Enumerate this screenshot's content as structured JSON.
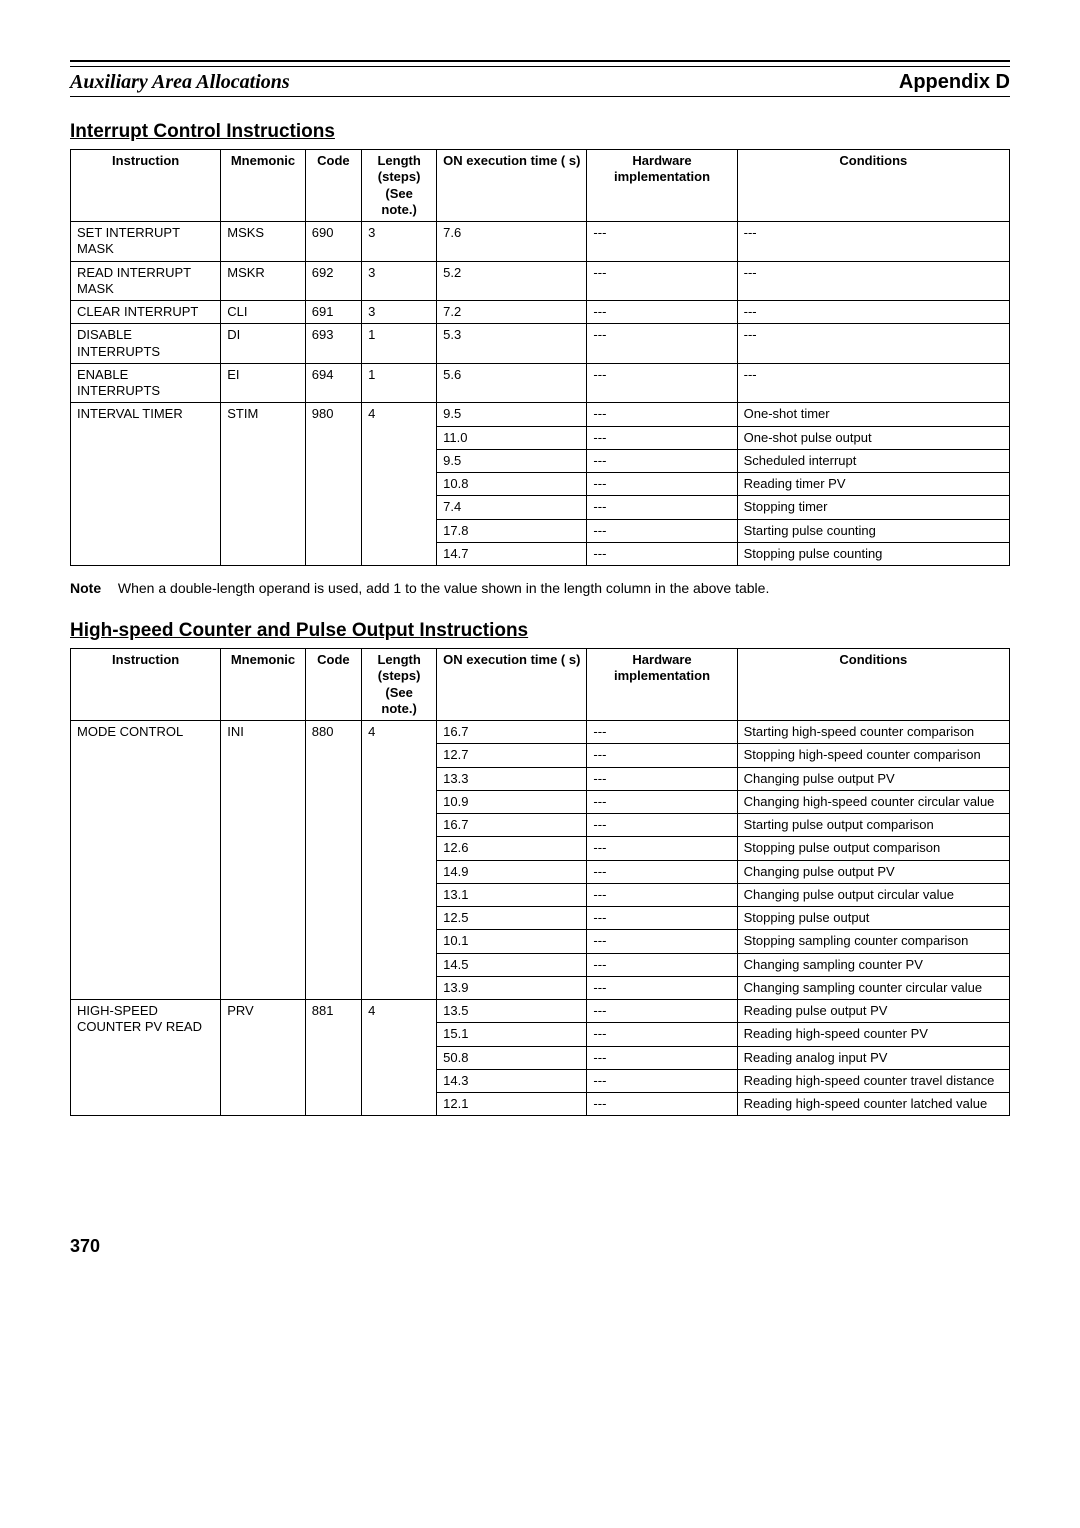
{
  "header": {
    "left": "Auxiliary Area Allocations",
    "right": "Appendix D"
  },
  "section1": {
    "title": "Interrupt Control Instructions",
    "columns": [
      "Instruction",
      "Mnemonic",
      "Code",
      "Length (steps) (See note.)",
      "ON execution time (  s)",
      "Hardware implementation",
      "Conditions"
    ],
    "rows": [
      {
        "instruction": "SET INTERRUPT MASK",
        "mnemonic": "MSKS",
        "code": "690",
        "length": "3",
        "on": "7.6",
        "hw": "---",
        "cond": "---",
        "rowspan": 1
      },
      {
        "instruction": "READ INTERRUPT MASK",
        "mnemonic": "MSKR",
        "code": "692",
        "length": "3",
        "on": "5.2",
        "hw": "---",
        "cond": "---",
        "rowspan": 1
      },
      {
        "instruction": "CLEAR INTERRUPT",
        "mnemonic": "CLI",
        "code": "691",
        "length": "3",
        "on": "7.2",
        "hw": "---",
        "cond": "---",
        "rowspan": 1
      },
      {
        "instruction": "DISABLE INTERRUPTS",
        "mnemonic": "DI",
        "code": "693",
        "length": "1",
        "on": "5.3",
        "hw": "---",
        "cond": "---",
        "rowspan": 1
      },
      {
        "instruction": "ENABLE INTERRUPTS",
        "mnemonic": "EI",
        "code": "694",
        "length": "1",
        "on": "5.6",
        "hw": "---",
        "cond": "---",
        "rowspan": 1
      },
      {
        "instruction": "INTERVAL TIMER",
        "mnemonic": "STIM",
        "code": "980",
        "length": "4",
        "rowspan": 7,
        "sub": [
          {
            "on": "9.5",
            "hw": "---",
            "cond": "One-shot timer"
          },
          {
            "on": "11.0",
            "hw": "---",
            "cond": "One-shot pulse output"
          },
          {
            "on": "9.5",
            "hw": "---",
            "cond": "Scheduled interrupt"
          },
          {
            "on": "10.8",
            "hw": "---",
            "cond": "Reading timer PV"
          },
          {
            "on": "7.4",
            "hw": "---",
            "cond": "Stopping timer"
          },
          {
            "on": "17.8",
            "hw": "---",
            "cond": "Starting pulse counting"
          },
          {
            "on": "14.7",
            "hw": "---",
            "cond": "Stopping pulse counting"
          }
        ]
      }
    ]
  },
  "note": {
    "label": "Note",
    "text": "When a double-length operand is used, add 1 to the value shown in the length column in the above table."
  },
  "section2": {
    "title": "High-speed Counter and Pulse Output Instructions",
    "columns": [
      "Instruction",
      "Mnemonic",
      "Code",
      "Length (steps) (See note.)",
      "ON execution time (  s)",
      "Hardware implementation",
      "Conditions"
    ],
    "rows": [
      {
        "instruction": "MODE CONTROL",
        "mnemonic": "INI",
        "code": "880",
        "length": "4",
        "rowspan": 12,
        "sub": [
          {
            "on": "16.7",
            "hw": "---",
            "cond": "Starting high-speed counter comparison"
          },
          {
            "on": "12.7",
            "hw": "---",
            "cond": "Stopping high-speed counter comparison"
          },
          {
            "on": "13.3",
            "hw": "---",
            "cond": "Changing pulse output PV"
          },
          {
            "on": "10.9",
            "hw": "---",
            "cond": "Changing high-speed counter circular value"
          },
          {
            "on": "16.7",
            "hw": "---",
            "cond": "Starting pulse output comparison"
          },
          {
            "on": "12.6",
            "hw": "---",
            "cond": "Stopping pulse output comparison"
          },
          {
            "on": "14.9",
            "hw": "---",
            "cond": "Changing pulse output PV"
          },
          {
            "on": "13.1",
            "hw": "---",
            "cond": "Changing pulse output circular value"
          },
          {
            "on": "12.5",
            "hw": "---",
            "cond": "Stopping pulse output"
          },
          {
            "on": "10.1",
            "hw": "---",
            "cond": "Stopping sampling counter comparison"
          },
          {
            "on": "14.5",
            "hw": "---",
            "cond": "Changing sampling counter PV"
          },
          {
            "on": "13.9",
            "hw": "---",
            "cond": "Changing sampling counter circular value"
          }
        ]
      },
      {
        "instruction": "HIGH-SPEED COUNTER PV READ",
        "mnemonic": "PRV",
        "code": "881",
        "length": "4",
        "rowspan": 5,
        "sub": [
          {
            "on": "13.5",
            "hw": "---",
            "cond": "Reading pulse output PV"
          },
          {
            "on": "15.1",
            "hw": "---",
            "cond": "Reading high-speed counter PV"
          },
          {
            "on": "50.8",
            "hw": "---",
            "cond": "Reading analog input PV"
          },
          {
            "on": "14.3",
            "hw": "---",
            "cond": "Reading high-speed counter travel distance"
          },
          {
            "on": "12.1",
            "hw": "---",
            "cond": "Reading high-speed counter latched value"
          }
        ]
      }
    ]
  },
  "page_number": "370"
}
